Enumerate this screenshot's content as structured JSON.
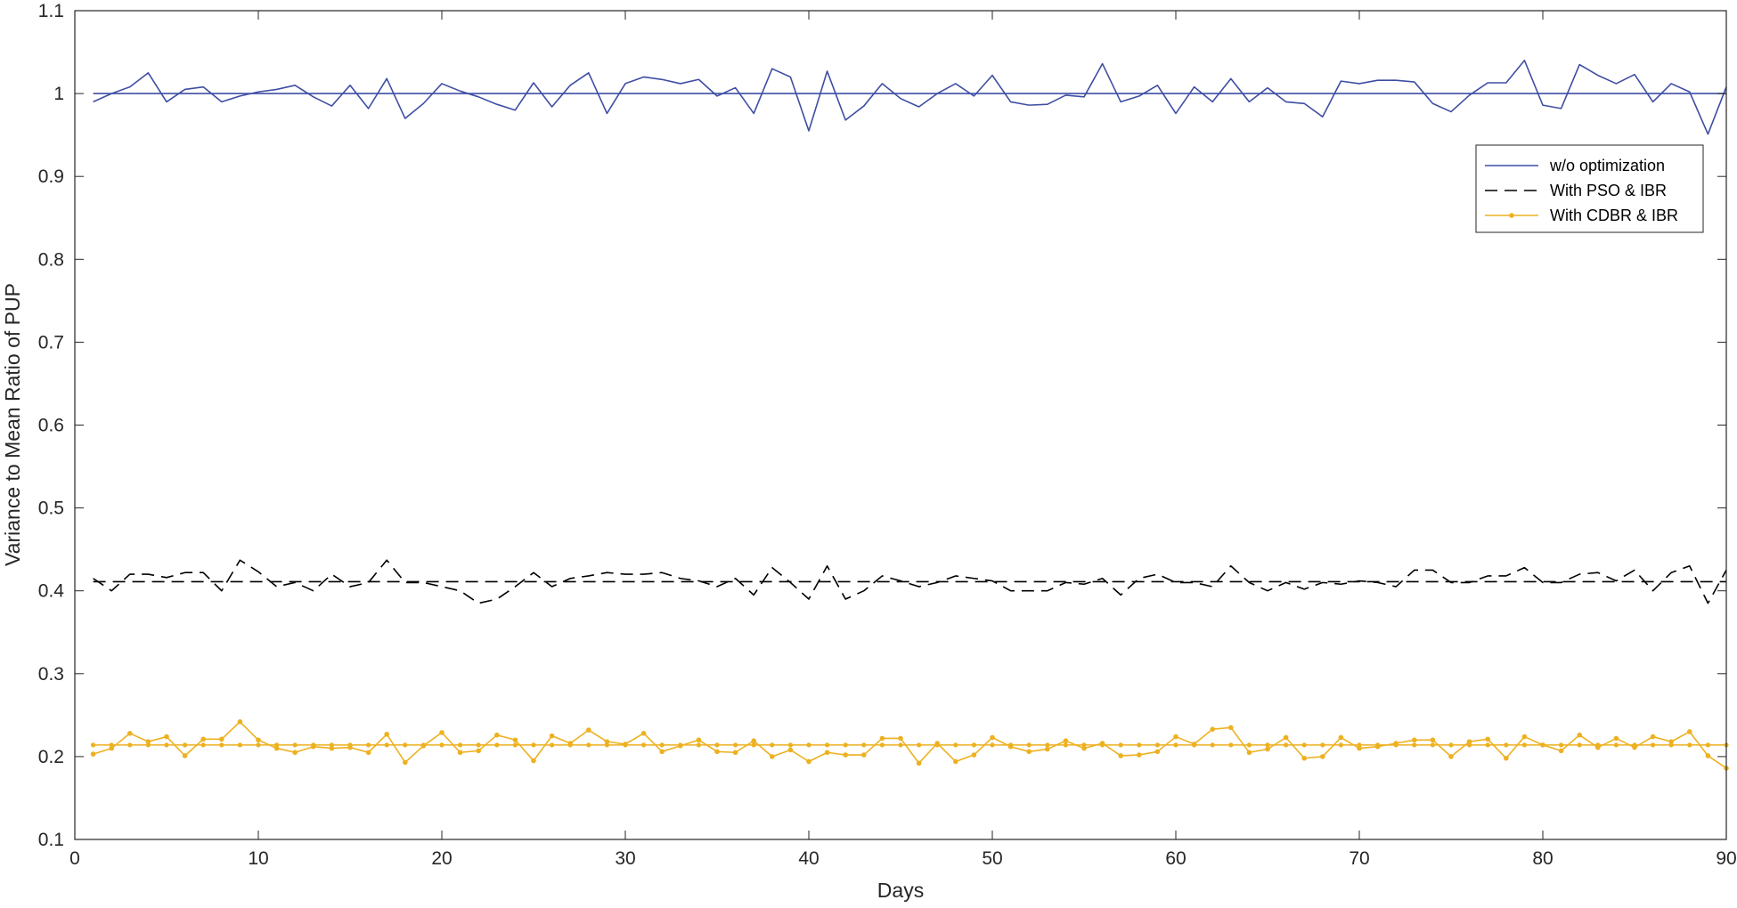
{
  "chart_data": {
    "type": "line",
    "title": "",
    "xlabel": "Days",
    "ylabel": "Variance to Mean Ratio of PUP",
    "xlim": [
      0,
      90
    ],
    "ylim": [
      0.1,
      1.1
    ],
    "xticks": [
      0,
      10,
      20,
      30,
      40,
      50,
      60,
      70,
      80,
      90
    ],
    "xtick_labels": [
      "0",
      "10",
      "20",
      "30",
      "40",
      "50",
      "60",
      "70",
      "80",
      "90"
    ],
    "yticks": [
      0.1,
      0.2,
      0.3,
      0.4,
      0.5,
      0.6,
      0.7,
      0.8,
      0.9,
      1.0,
      1.1
    ],
    "ytick_labels": [
      "0.1",
      "0.2",
      "0.3",
      "0.4",
      "0.5",
      "0.6",
      "0.7",
      "0.8",
      "0.9",
      "1",
      "1.1"
    ],
    "grid": false,
    "legend_position": "top-right",
    "x": [
      1,
      2,
      3,
      4,
      5,
      6,
      7,
      8,
      9,
      10,
      11,
      12,
      13,
      14,
      15,
      16,
      17,
      18,
      19,
      20,
      21,
      22,
      23,
      24,
      25,
      26,
      27,
      28,
      29,
      30,
      31,
      32,
      33,
      34,
      35,
      36,
      37,
      38,
      39,
      40,
      41,
      42,
      43,
      44,
      45,
      46,
      47,
      48,
      49,
      50,
      51,
      52,
      53,
      54,
      55,
      56,
      57,
      58,
      59,
      60,
      61,
      62,
      63,
      64,
      65,
      66,
      67,
      68,
      69,
      70,
      71,
      72,
      73,
      74,
      75,
      76,
      77,
      78,
      79,
      80,
      81,
      82,
      83,
      84,
      85,
      86,
      87,
      88,
      89,
      90
    ],
    "series": [
      {
        "name": "w/o optimization",
        "color": "#3F4EA3",
        "style": "solid",
        "mean": 1.0,
        "values": [
          0.99,
          1.0,
          1.008,
          1.025,
          0.99,
          1.005,
          1.008,
          0.99,
          0.997,
          1.002,
          1.005,
          1.01,
          0.996,
          0.985,
          1.01,
          0.982,
          1.018,
          0.97,
          0.988,
          1.012,
          1.003,
          0.996,
          0.987,
          0.98,
          1.013,
          0.984,
          1.01,
          1.025,
          0.976,
          1.012,
          1.02,
          1.017,
          1.012,
          1.017,
          0.997,
          1.007,
          0.976,
          1.03,
          1.02,
          0.955,
          1.027,
          0.968,
          0.985,
          1.012,
          0.994,
          0.984,
          1.0,
          1.012,
          0.997,
          1.022,
          0.99,
          0.986,
          0.987,
          0.998,
          0.996,
          1.036,
          0.99,
          0.997,
          1.01,
          0.976,
          1.008,
          0.99,
          1.018,
          0.99,
          1.007,
          0.99,
          0.988,
          0.972,
          1.015,
          1.012,
          1.016,
          1.016,
          1.014,
          0.988,
          0.978,
          0.998,
          1.013,
          1.013,
          1.04,
          0.986,
          0.982,
          1.035,
          1.022,
          1.012,
          1.023,
          0.99,
          1.012,
          1.002,
          0.951,
          1.008
        ]
      },
      {
        "name": "With PSO & IBR",
        "color": "#000000",
        "style": "dashed",
        "mean": 0.411,
        "values": [
          0.415,
          0.4,
          0.42,
          0.42,
          0.416,
          0.422,
          0.422,
          0.4,
          0.437,
          0.423,
          0.405,
          0.41,
          0.4,
          0.42,
          0.405,
          0.41,
          0.437,
          0.41,
          0.41,
          0.405,
          0.4,
          0.385,
          0.39,
          0.405,
          0.422,
          0.405,
          0.415,
          0.418,
          0.422,
          0.42,
          0.42,
          0.422,
          0.415,
          0.412,
          0.405,
          0.415,
          0.395,
          0.428,
          0.41,
          0.39,
          0.43,
          0.39,
          0.4,
          0.418,
          0.412,
          0.405,
          0.41,
          0.418,
          0.415,
          0.412,
          0.4,
          0.4,
          0.4,
          0.41,
          0.408,
          0.415,
          0.395,
          0.415,
          0.42,
          0.41,
          0.41,
          0.405,
          0.43,
          0.41,
          0.4,
          0.41,
          0.402,
          0.41,
          0.408,
          0.412,
          0.41,
          0.405,
          0.425,
          0.425,
          0.41,
          0.41,
          0.418,
          0.418,
          0.428,
          0.41,
          0.41,
          0.42,
          0.422,
          0.412,
          0.425,
          0.4,
          0.422,
          0.43,
          0.385,
          0.425
        ]
      },
      {
        "name": "With CDBR & IBR",
        "color": "#EDB120",
        "style": "solid-marker",
        "mean": 0.214,
        "values": [
          0.203,
          0.21,
          0.228,
          0.218,
          0.224,
          0.201,
          0.221,
          0.221,
          0.242,
          0.22,
          0.21,
          0.205,
          0.212,
          0.21,
          0.211,
          0.205,
          0.227,
          0.193,
          0.213,
          0.229,
          0.205,
          0.207,
          0.226,
          0.22,
          0.195,
          0.225,
          0.216,
          0.232,
          0.218,
          0.215,
          0.228,
          0.206,
          0.213,
          0.22,
          0.206,
          0.205,
          0.219,
          0.2,
          0.208,
          0.194,
          0.205,
          0.202,
          0.202,
          0.222,
          0.222,
          0.192,
          0.216,
          0.194,
          0.202,
          0.223,
          0.212,
          0.206,
          0.209,
          0.219,
          0.21,
          0.216,
          0.201,
          0.202,
          0.206,
          0.224,
          0.215,
          0.233,
          0.235,
          0.205,
          0.209,
          0.223,
          0.198,
          0.2,
          0.223,
          0.21,
          0.212,
          0.216,
          0.22,
          0.22,
          0.2,
          0.218,
          0.221,
          0.198,
          0.224,
          0.214,
          0.207,
          0.226,
          0.211,
          0.222,
          0.211,
          0.224,
          0.218,
          0.23,
          0.201,
          0.186
        ]
      }
    ]
  }
}
